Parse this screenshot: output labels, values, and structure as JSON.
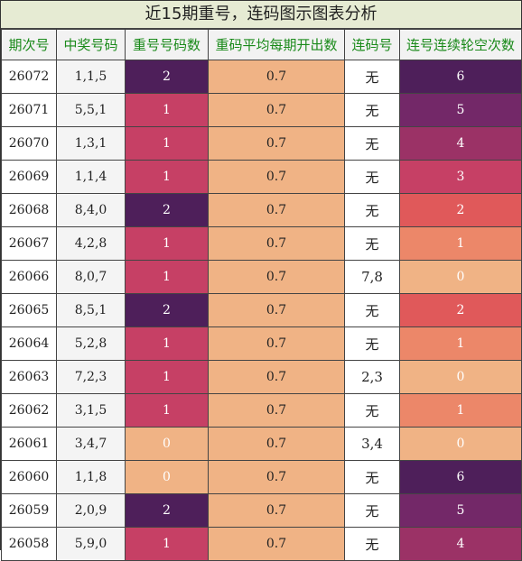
{
  "title": "近15期重号，连码图示图表分析",
  "headers": [
    "期次号",
    "中奖号码",
    "重号号码数",
    "重码平均每期开出数",
    "连码号",
    "连号连续轮空次数"
  ],
  "rows": [
    {
      "issue": "26072",
      "nums": "1,1,5",
      "repeat": "2",
      "repeat_color": "#4e1f5a",
      "avg": "0.7",
      "link": "无",
      "gap": "6",
      "gap_color": "#4e1f5a"
    },
    {
      "issue": "26071",
      "nums": "5,5,1",
      "repeat": "1",
      "repeat_color": "#c64065",
      "avg": "0.7",
      "link": "无",
      "gap": "5",
      "gap_color": "#732868"
    },
    {
      "issue": "26070",
      "nums": "1,3,1",
      "repeat": "1",
      "repeat_color": "#c64065",
      "avg": "0.7",
      "link": "无",
      "gap": "4",
      "gap_color": "#9b3266"
    },
    {
      "issue": "26069",
      "nums": "1,1,4",
      "repeat": "1",
      "repeat_color": "#c64065",
      "avg": "0.7",
      "link": "无",
      "gap": "3",
      "gap_color": "#c64065"
    },
    {
      "issue": "26068",
      "nums": "8,4,0",
      "repeat": "2",
      "repeat_color": "#4e1f5a",
      "avg": "0.7",
      "link": "无",
      "gap": "2",
      "gap_color": "#e0595a"
    },
    {
      "issue": "26067",
      "nums": "4,2,8",
      "repeat": "1",
      "repeat_color": "#c64065",
      "avg": "0.7",
      "link": "无",
      "gap": "1",
      "gap_color": "#ec8769"
    },
    {
      "issue": "26066",
      "nums": "8,0,7",
      "repeat": "1",
      "repeat_color": "#c64065",
      "avg": "0.7",
      "link": "7,8",
      "gap": "0",
      "gap_color": "#f0b385"
    },
    {
      "issue": "26065",
      "nums": "8,5,1",
      "repeat": "2",
      "repeat_color": "#4e1f5a",
      "avg": "0.7",
      "link": "无",
      "gap": "2",
      "gap_color": "#e0595a"
    },
    {
      "issue": "26064",
      "nums": "5,2,8",
      "repeat": "1",
      "repeat_color": "#c64065",
      "avg": "0.7",
      "link": "无",
      "gap": "1",
      "gap_color": "#ec8769"
    },
    {
      "issue": "26063",
      "nums": "7,2,3",
      "repeat": "1",
      "repeat_color": "#c64065",
      "avg": "0.7",
      "link": "2,3",
      "gap": "0",
      "gap_color": "#f0b385"
    },
    {
      "issue": "26062",
      "nums": "3,1,5",
      "repeat": "1",
      "repeat_color": "#c64065",
      "avg": "0.7",
      "link": "无",
      "gap": "1",
      "gap_color": "#ec8769"
    },
    {
      "issue": "26061",
      "nums": "3,4,7",
      "repeat": "0",
      "repeat_color": "#f0b385",
      "avg": "0.7",
      "link": "3,4",
      "gap": "0",
      "gap_color": "#f0b385"
    },
    {
      "issue": "26060",
      "nums": "1,1,8",
      "repeat": "0",
      "repeat_color": "#f0b385",
      "avg": "0.7",
      "link": "无",
      "gap": "6",
      "gap_color": "#4e1f5a"
    },
    {
      "issue": "26059",
      "nums": "2,0,9",
      "repeat": "2",
      "repeat_color": "#4e1f5a",
      "avg": "0.7",
      "link": "无",
      "gap": "5",
      "gap_color": "#732868"
    },
    {
      "issue": "26058",
      "nums": "5,9,0",
      "repeat": "1",
      "repeat_color": "#c64065",
      "avg": "0.7",
      "link": "无",
      "gap": "4",
      "gap_color": "#9b3266"
    }
  ]
}
